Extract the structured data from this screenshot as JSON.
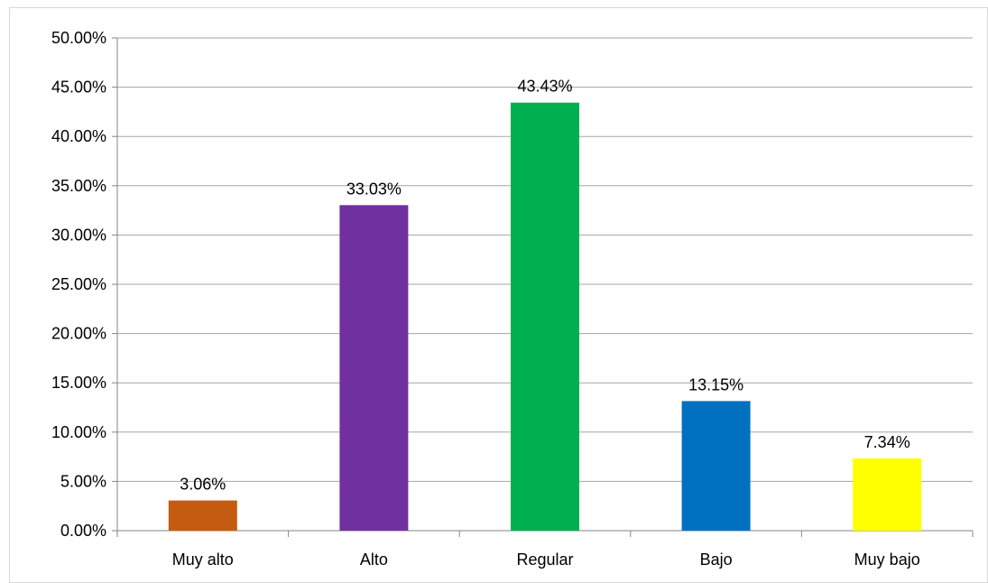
{
  "chart_data": {
    "type": "bar",
    "categories": [
      "Muy alto",
      "Alto",
      "Regular",
      "Bajo",
      "Muy bajo"
    ],
    "values": [
      3.06,
      33.03,
      43.43,
      13.15,
      7.34
    ],
    "value_labels": [
      "3.06%",
      "33.03%",
      "43.43%",
      "13.15%",
      "7.34%"
    ],
    "colors": [
      "#c55a11",
      "#7030a0",
      "#00b050",
      "#0070c0",
      "#ffff00"
    ],
    "ylim": [
      0,
      50
    ],
    "yticks": [
      0,
      5,
      10,
      15,
      20,
      25,
      30,
      35,
      40,
      45,
      50
    ],
    "ytick_labels": [
      "0.00%",
      "5.00%",
      "10.00%",
      "15.00%",
      "20.00%",
      "25.00%",
      "30.00%",
      "35.00%",
      "40.00%",
      "45.00%",
      "50.00%"
    ],
    "grid": true,
    "gridline_color": "#a6a6a6",
    "title": "",
    "xlabel": "",
    "ylabel": ""
  }
}
